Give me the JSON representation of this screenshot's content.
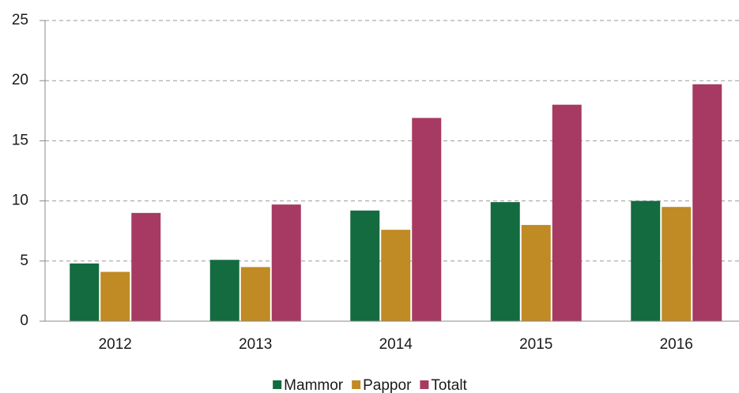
{
  "chart_data": {
    "type": "bar",
    "categories": [
      "2012",
      "2013",
      "2014",
      "2015",
      "2016"
    ],
    "series": [
      {
        "name": "Mammor",
        "color": "#136b3f",
        "values": [
          4.8,
          5.1,
          9.2,
          9.9,
          10.0
        ]
      },
      {
        "name": "Pappor",
        "color": "#c08a24",
        "values": [
          4.1,
          4.5,
          7.6,
          8.0,
          9.5
        ]
      },
      {
        "name": "Totalt",
        "color": "#a63a62",
        "values": [
          9.0,
          9.7,
          16.9,
          18.0,
          19.7
        ]
      }
    ],
    "ylim": [
      0,
      25
    ],
    "yticks": [
      0,
      5,
      10,
      15,
      20,
      25
    ],
    "grid": true,
    "legend": "bottom"
  }
}
